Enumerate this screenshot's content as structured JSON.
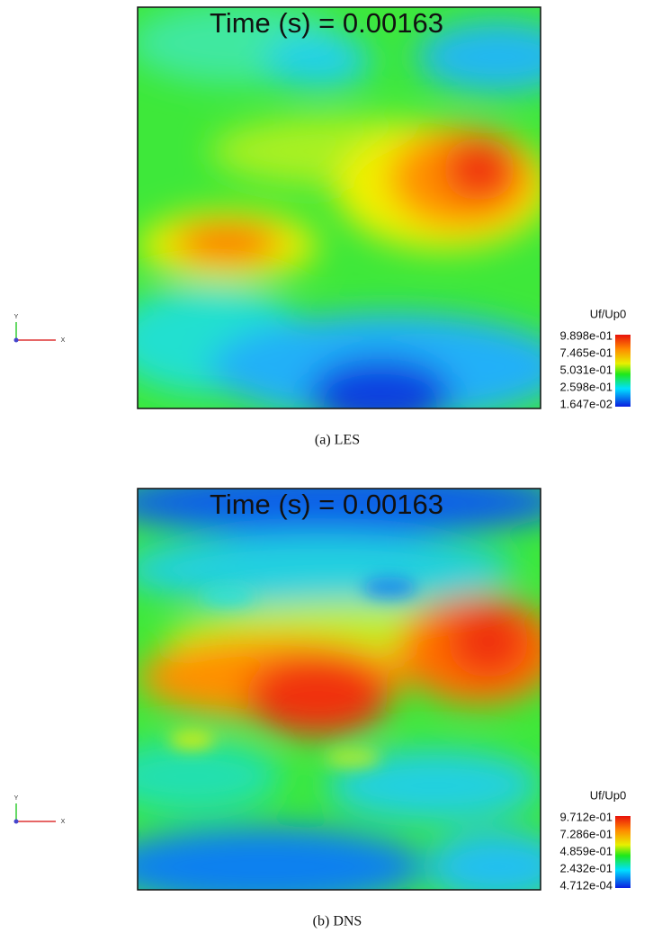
{
  "panels": [
    {
      "time_label": "Time (s) = 0.00163",
      "colorbar": {
        "title": "Uf/Up0",
        "labels": [
          "9.898e-01",
          "7.465e-01",
          "5.031e-01",
          "2.598e-01",
          "1.647e-02"
        ]
      },
      "axes": {
        "y": "Y",
        "x": "X"
      },
      "caption": "(a) LES"
    },
    {
      "time_label": "Time (s) = 0.00163",
      "colorbar": {
        "title": "Uf/Up0",
        "labels": [
          "9.712e-01",
          "7.286e-01",
          "4.859e-01",
          "2.432e-01",
          "4.712e-04"
        ]
      },
      "axes": {
        "y": "Y",
        "x": "X"
      },
      "caption": "(b) DNS"
    }
  ]
}
